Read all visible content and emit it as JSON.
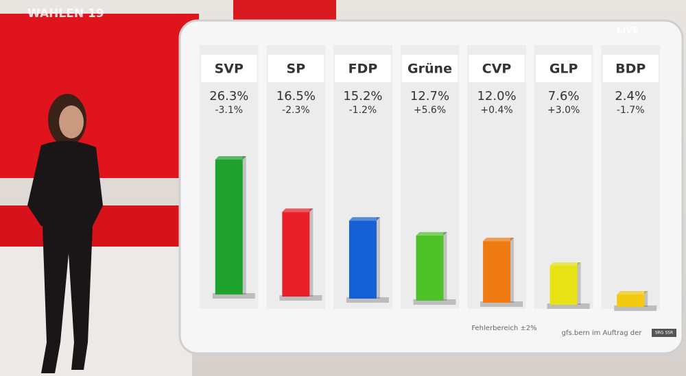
{
  "chart_data": {
    "type": "bar",
    "title": "WAHLEN 19",
    "badge": "LIVE",
    "categories": [
      "SVP",
      "SP",
      "FDP",
      "Grüne",
      "CVP",
      "GLP",
      "BDP"
    ],
    "values": [
      26.3,
      16.5,
      15.2,
      12.7,
      12.0,
      7.6,
      2.4
    ],
    "value_labels": [
      "26.3%",
      "16.5%",
      "15.2%",
      "12.7%",
      "12.0%",
      "7.6%",
      "2.4%"
    ],
    "changes": [
      -3.1,
      -2.3,
      -1.2,
      5.6,
      0.4,
      3.0,
      -1.7
    ],
    "change_labels": [
      "-3.1%",
      "-2.3%",
      "-1.2%",
      "+5.6%",
      "+0.4%",
      "+3.0%",
      "-1.7%"
    ],
    "colors": [
      "#1fa22e",
      "#e8202a",
      "#1560d4",
      "#4fc22a",
      "#f07a12",
      "#e6e214",
      "#f2c910"
    ],
    "note": "Fehlerbereich ±2%",
    "source": "gfs.bern im Auftrag der",
    "source_logo": "SRG SSR"
  }
}
